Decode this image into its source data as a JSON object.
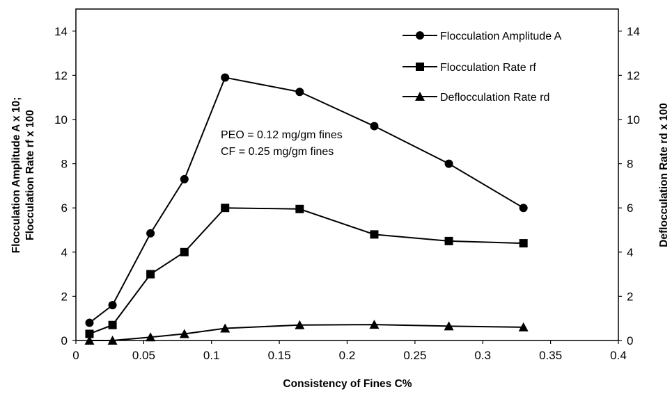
{
  "chart_data": {
    "type": "line",
    "title": "",
    "xlabel": "Consistency of Fines C%",
    "ylabel_left": [
      "Flocculation Amplitude A x 10;",
      "Flocculation Rate rf x 100"
    ],
    "ylabel_right": "Deflocculation Rate rd x 100",
    "xlim": [
      0,
      0.4
    ],
    "ylim": [
      0,
      15
    ],
    "y2lim": [
      0,
      15
    ],
    "x_ticks": [
      0,
      0.05,
      0.1,
      0.15,
      0.2,
      0.25,
      0.3,
      0.35,
      0.4
    ],
    "x_tick_labels": [
      "0",
      "0.05",
      "0.1",
      "0.15",
      "0.2",
      "0.25",
      "0.3",
      "0.35",
      "0.4"
    ],
    "y_ticks": [
      0,
      2,
      4,
      6,
      8,
      10,
      12,
      14
    ],
    "y_tick_labels": [
      "0",
      "2",
      "4",
      "6",
      "8",
      "10",
      "12",
      "14"
    ],
    "y2_ticks": [
      0,
      2,
      4,
      6,
      8,
      10,
      12,
      14
    ],
    "y2_tick_labels": [
      "0",
      "2",
      "4",
      "6",
      "8",
      "10",
      "12",
      "14"
    ],
    "grid": false,
    "legend_position": "top-right",
    "series": [
      {
        "name": "Flocculation Amplitude A",
        "marker": "circle",
        "axis": "left",
        "x": [
          0.01,
          0.027,
          0.055,
          0.08,
          0.11,
          0.165,
          0.22,
          0.275,
          0.33
        ],
        "y": [
          0.8,
          1.6,
          4.85,
          7.3,
          11.9,
          11.25,
          9.7,
          8.0,
          6.0
        ]
      },
      {
        "name": "Flocculation Rate rf",
        "marker": "square",
        "axis": "left",
        "x": [
          0.01,
          0.027,
          0.055,
          0.08,
          0.11,
          0.165,
          0.22,
          0.275,
          0.33
        ],
        "y": [
          0.3,
          0.7,
          3.0,
          4.0,
          6.0,
          5.95,
          4.8,
          4.5,
          4.4
        ]
      },
      {
        "name": "Deflocculation Rate rd",
        "marker": "triangle",
        "axis": "right",
        "x": [
          0.01,
          0.027,
          0.055,
          0.08,
          0.11,
          0.165,
          0.22,
          0.275,
          0.33
        ],
        "y": [
          0.0,
          0.0,
          0.15,
          0.3,
          0.55,
          0.7,
          0.72,
          0.65,
          0.6
        ]
      }
    ],
    "annotations": [
      "PEO = 0.12 mg/gm fines",
      "CF = 0.25 mg/gm fines"
    ],
    "colors": {
      "line": "#000000",
      "marker": "#000000",
      "axis": "#000000",
      "background": "#ffffff"
    }
  }
}
